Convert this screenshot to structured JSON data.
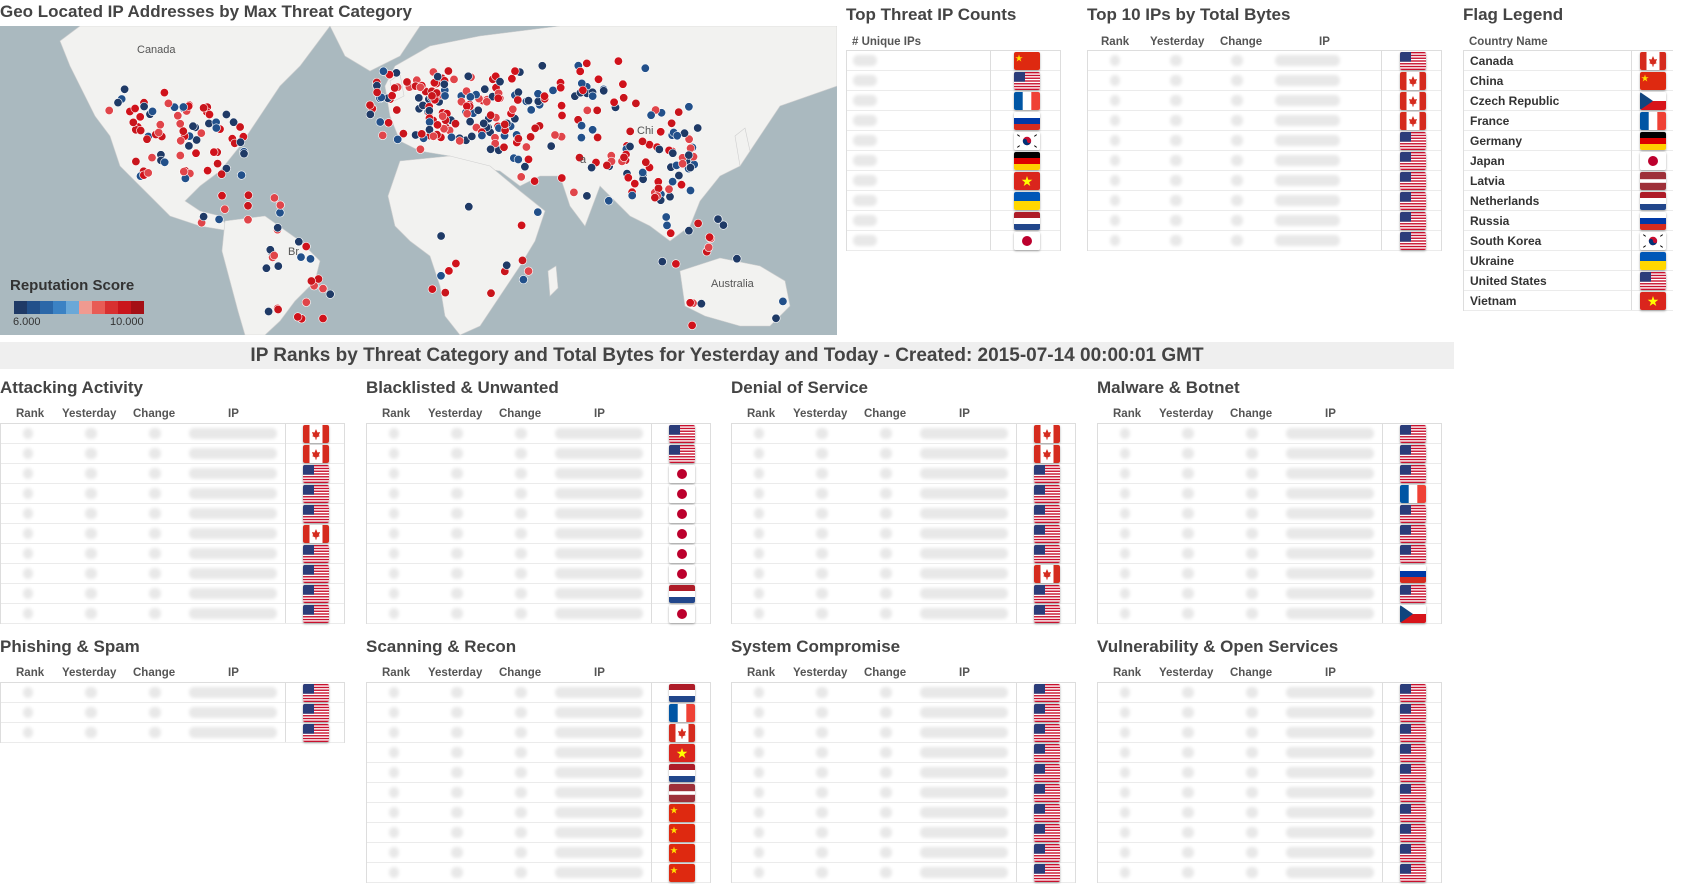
{
  "map": {
    "title": "Geo Located IP Addresses by Max Threat Category",
    "labels": {
      "canada": "Canada",
      "china": "Chi",
      "brazil": "Br",
      "australia": "Australia",
      "india": "a"
    },
    "legend_title": "Reputation Score",
    "legend_min": "6.000",
    "legend_max": "10.000",
    "color_low": "#1f3a66",
    "color_high": "#d0121b"
  },
  "top_threat": {
    "title": "Top Threat IP Counts",
    "header": "# Unique IPs",
    "flags": [
      "china",
      "us",
      "france",
      "russia",
      "korea",
      "germany",
      "vietnam",
      "ukraine",
      "netherlands",
      "japan"
    ]
  },
  "top_bytes": {
    "title": "Top 10 IPs by Total Bytes",
    "headers": {
      "rank": "Rank",
      "yesterday": "Yesterday",
      "change": "Change",
      "ip": "IP"
    },
    "flags": [
      "us",
      "canada",
      "canada",
      "canada",
      "us",
      "us",
      "us",
      "us",
      "us",
      "us"
    ]
  },
  "flag_legend": {
    "title": "Flag Legend",
    "header": "Country Name",
    "items": [
      {
        "name": "Canada",
        "flag": "canada"
      },
      {
        "name": "China",
        "flag": "china"
      },
      {
        "name": "Czech Republic",
        "flag": "czech"
      },
      {
        "name": "France",
        "flag": "france"
      },
      {
        "name": "Germany",
        "flag": "germany"
      },
      {
        "name": "Japan",
        "flag": "japan"
      },
      {
        "name": "Latvia",
        "flag": "latvia"
      },
      {
        "name": "Netherlands",
        "flag": "netherlands"
      },
      {
        "name": "Russia",
        "flag": "russia"
      },
      {
        "name": "South Korea",
        "flag": "korea"
      },
      {
        "name": "Ukraine",
        "flag": "ukraine"
      },
      {
        "name": "United States",
        "flag": "us"
      },
      {
        "name": "Vietnam",
        "flag": "vietnam"
      }
    ]
  },
  "banner": "IP Ranks by Threat Category and Total Bytes for Yesterday and Today - Created: 2015-07-14 00:00:01 GMT",
  "headers": {
    "rank": "Rank",
    "yesterday": "Yesterday",
    "change": "Change",
    "ip": "IP"
  },
  "categories": [
    {
      "title": "Attacking Activity",
      "flags": [
        "canada",
        "canada",
        "us",
        "us",
        "us",
        "canada",
        "us",
        "us",
        "us",
        "us"
      ]
    },
    {
      "title": "Blacklisted & Unwanted",
      "flags": [
        "us",
        "us",
        "japan",
        "japan",
        "japan",
        "japan",
        "japan",
        "japan",
        "netherlands",
        "japan"
      ]
    },
    {
      "title": "Denial of Service",
      "flags": [
        "canada",
        "canada",
        "us",
        "us",
        "us",
        "us",
        "us",
        "canada",
        "us",
        "us"
      ]
    },
    {
      "title": "Malware & Botnet",
      "flags": [
        "us",
        "us",
        "us",
        "france",
        "us",
        "us",
        "us",
        "russia",
        "us",
        "czech"
      ]
    },
    {
      "title": "Phishing & Spam",
      "flags": [
        "us",
        "us",
        "us"
      ]
    },
    {
      "title": "Scanning & Recon",
      "flags": [
        "netherlands",
        "france",
        "canada",
        "vietnam",
        "netherlands",
        "latvia",
        "china",
        "china",
        "china",
        "china"
      ]
    },
    {
      "title": "System Compromise",
      "flags": [
        "us",
        "us",
        "us",
        "us",
        "us",
        "us",
        "us",
        "us",
        "us",
        "us"
      ]
    },
    {
      "title": "Vulnerability & Open Services",
      "flags": [
        "us",
        "us",
        "us",
        "us",
        "us",
        "us",
        "us",
        "us",
        "us",
        "us"
      ]
    }
  ]
}
